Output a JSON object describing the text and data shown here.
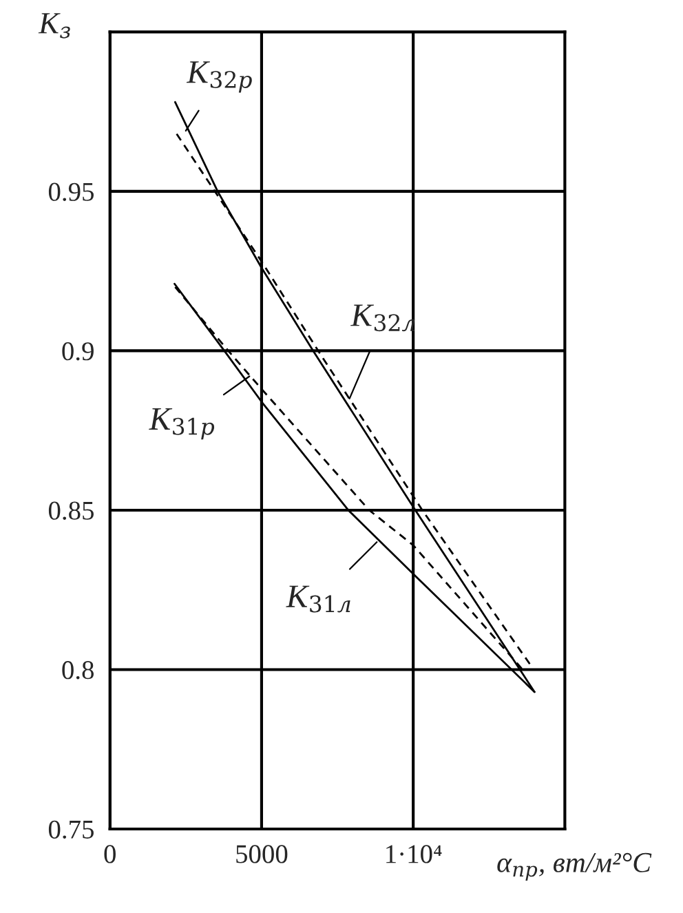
{
  "chart_data": {
    "type": "line",
    "xlabel": "α$_{пр}$, вт/м²°C",
    "ylabel": "K$_{з}$",
    "xlim": [
      0,
      15000
    ],
    "xticks": [
      0,
      5000,
      {
        "value": 10000,
        "label": "1·10⁴"
      }
    ],
    "ylim": [
      0.75,
      1.0
    ],
    "yticks": [
      0.75,
      0.8,
      0.85,
      0.9,
      0.95
    ],
    "grid": true,
    "legend": false,
    "series": [
      {
        "color": "#000000",
        "line_style": "solid",
        "x": [
          2150,
          3550,
          5000,
          6700,
          10000,
          14000
        ],
        "values": [
          0.978,
          0.95,
          0.926,
          0.9,
          0.851,
          0.793
        ]
      },
      {
        "color": "#000000",
        "line_style": "dashed",
        "x": [
          2200,
          3600,
          5000,
          7000,
          10300,
          13900
        ],
        "values": [
          0.968,
          0.948,
          0.928,
          0.898,
          0.85,
          0.801
        ]
      },
      {
        "color": "#000000",
        "line_style": "solid",
        "x": [
          2130,
          3770,
          5000,
          7860,
          10000,
          14000
        ],
        "values": [
          0.921,
          0.9,
          0.884,
          0.85,
          0.83,
          0.793
        ]
      },
      {
        "color": "#000000",
        "line_style": "dashed",
        "x": [
          2150,
          3900,
          5000,
          8550,
          10000,
          13700
        ],
        "values": [
          0.92,
          0.9,
          0.888,
          0.85,
          0.839,
          0.799
        ]
      }
    ],
    "annotations": [
      {
        "text": "K$_{32р}$",
        "x": 2500,
        "y": 0.969
      },
      {
        "text": "K$_{32л}$",
        "x": 7900,
        "y": 0.885
      },
      {
        "text": "K$_{31р}$",
        "x": 4600,
        "y": 0.892
      },
      {
        "text": "K$_{31л}$",
        "x": 8800,
        "y": 0.84
      }
    ]
  }
}
